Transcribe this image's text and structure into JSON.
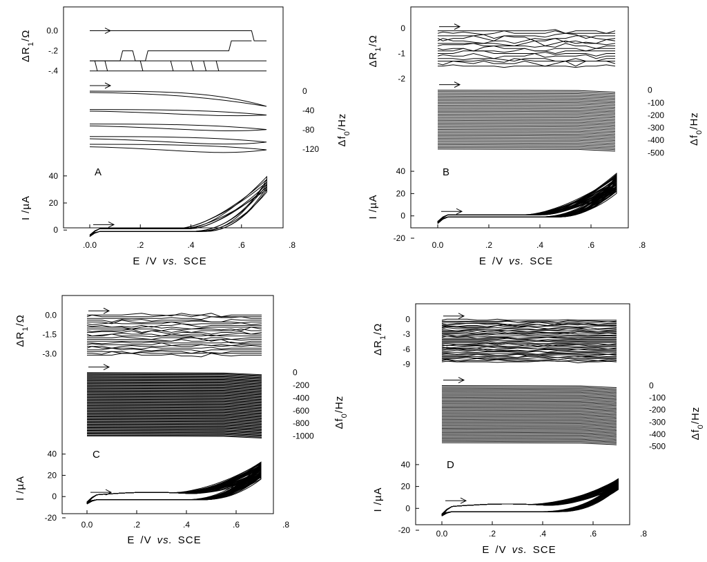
{
  "chart_data": [
    {
      "type": "line",
      "panel": "A",
      "xlabel_parts": [
        "E",
        "/V",
        "vs.",
        "SCE"
      ],
      "xticks": [
        ".0.0",
        ".2",
        ".4",
        ".6",
        ".8"
      ],
      "xlim": [
        -0.1,
        0.8
      ],
      "cv": {
        "ylabel_parts": [
          "I",
          "/",
          "µ",
          "A"
        ],
        "yticks": [
          {
            "v": 40,
            "l": "40"
          },
          {
            "v": 20,
            "l": "20"
          },
          {
            "v": 0,
            "l": "0"
          }
        ],
        "ylim": [
          -5,
          45
        ],
        "n_cycles": 6,
        "peak_current_range_uA": [
          30,
          38
        ]
      },
      "resistance": {
        "ylabel_parts": [
          "ΔR",
          "1",
          "/Ω"
        ],
        "yticks": [
          {
            "v": 0,
            "l": "0.0"
          },
          {
            "v": -0.2,
            "l": "-.2"
          },
          {
            "v": -0.4,
            "l": "-.4"
          }
        ],
        "ylim": [
          -0.45,
          0.1
        ],
        "levels": [
          0.0,
          -0.3,
          -0.4
        ]
      },
      "frequency": {
        "ylabel_parts": [
          "Δf",
          "0",
          "/Hz"
        ],
        "yticks": [
          {
            "v": 0,
            "l": "0"
          },
          {
            "v": -40,
            "l": "-40"
          },
          {
            "v": -80,
            "l": "-80"
          },
          {
            "v": -120,
            "l": "-120"
          }
        ],
        "ylim": [
          -140,
          10
        ],
        "offsets": [
          0,
          -38,
          -68,
          -94,
          -110
        ]
      }
    },
    {
      "type": "line",
      "panel": "B",
      "xlabel_parts": [
        "E",
        "/V",
        "vs.",
        "SCE"
      ],
      "xticks": [
        "0.0",
        ".2",
        ".4",
        ".6",
        ".8"
      ],
      "xlim": [
        -0.1,
        0.8
      ],
      "cv": {
        "ylabel_parts": [
          "I",
          "/",
          "µ",
          "A"
        ],
        "yticks": [
          {
            "v": 40,
            "l": "40"
          },
          {
            "v": 20,
            "l": "20"
          },
          {
            "v": 0,
            "l": "0"
          },
          {
            "v": -20,
            "l": "-20"
          }
        ],
        "ylim": [
          -20,
          45
        ],
        "n_cycles": 30,
        "peak_current_range_uA": [
          22,
          37
        ]
      },
      "resistance": {
        "ylabel_parts": [
          "ΔR",
          "1",
          "/Ω"
        ],
        "yticks": [
          {
            "v": 0,
            "l": "0"
          },
          {
            "v": -1,
            "l": "-1"
          },
          {
            "v": -2,
            "l": "-2"
          }
        ],
        "ylim": [
          -2.3,
          0.3
        ],
        "range": [
          -1.5,
          -0.1
        ],
        "n_traces": 15
      },
      "frequency": {
        "ylabel_parts": [
          "Δf",
          "0",
          "/Hz"
        ],
        "yticks": [
          {
            "v": 0,
            "l": "0"
          },
          {
            "v": -100,
            "l": "-100"
          },
          {
            "v": -200,
            "l": "-200"
          },
          {
            "v": -300,
            "l": "-300"
          },
          {
            "v": -400,
            "l": "-400"
          },
          {
            "v": -500,
            "l": "-500"
          }
        ],
        "ylim": [
          -520,
          20
        ],
        "range": [
          -470,
          0
        ],
        "n_traces": 40
      }
    },
    {
      "type": "line",
      "panel": "C",
      "xlabel_parts": [
        "E",
        "/V",
        "vs.",
        "SCE"
      ],
      "xticks": [
        "0.0",
        ".2",
        ".4",
        ".6",
        ".8"
      ],
      "xlim": [
        -0.1,
        0.8
      ],
      "cv": {
        "ylabel_parts": [
          "I",
          "/",
          "µ",
          "A"
        ],
        "yticks": [
          {
            "v": 40,
            "l": "40"
          },
          {
            "v": 20,
            "l": "20"
          },
          {
            "v": 0,
            "l": "0"
          },
          {
            "v": -20,
            "l": "-20"
          }
        ],
        "ylim": [
          -20,
          45
        ],
        "n_cycles": 40,
        "peak_current_range_uA": [
          20,
          34
        ]
      },
      "resistance": {
        "ylabel_parts": [
          "ΔR",
          "1",
          "/Ω"
        ],
        "yticks": [
          {
            "v": 0,
            "l": "0.0"
          },
          {
            "v": -1.5,
            "l": "-1.5"
          },
          {
            "v": -3,
            "l": "-3.0"
          }
        ],
        "ylim": [
          -3.4,
          0.6
        ],
        "range": [
          -3.1,
          0
        ],
        "n_traces": 24
      },
      "frequency": {
        "ylabel_parts": [
          "Δf",
          "0",
          "/Hz"
        ],
        "yticks": [
          {
            "v": 0,
            "l": "0"
          },
          {
            "v": -200,
            "l": "-200"
          },
          {
            "v": -400,
            "l": "-400"
          },
          {
            "v": -600,
            "l": "-600"
          },
          {
            "v": -800,
            "l": "-800"
          },
          {
            "v": -1000,
            "l": "-1000"
          }
        ],
        "ylim": [
          -1060,
          40
        ],
        "range": [
          -1000,
          0
        ],
        "n_traces": 70
      }
    },
    {
      "type": "line",
      "panel": "D",
      "xlabel_parts": [
        "E",
        "/V",
        "vs.",
        "SCE"
      ],
      "xticks": [
        "0.0",
        ".2",
        ".4",
        ".6",
        ".8"
      ],
      "xlim": [
        -0.1,
        0.8
      ],
      "cv": {
        "ylabel_parts": [
          "I",
          "/",
          "µ",
          "A"
        ],
        "yticks": [
          {
            "v": 40,
            "l": "40"
          },
          {
            "v": 20,
            "l": "20"
          },
          {
            "v": 0,
            "l": "0"
          },
          {
            "v": -20,
            "l": "-20"
          }
        ],
        "ylim": [
          -20,
          45
        ],
        "n_cycles": 40,
        "peak_current_range_uA": [
          20,
          29
        ]
      },
      "resistance": {
        "ylabel_parts": [
          "ΔR",
          "1",
          "/Ω"
        ],
        "yticks": [
          {
            "v": 0,
            "l": "0"
          },
          {
            "v": -3,
            "l": "-3"
          },
          {
            "v": -6,
            "l": "-6"
          },
          {
            "v": -9,
            "l": "-9"
          }
        ],
        "ylim": [
          -10,
          1
        ],
        "range": [
          -8.5,
          -0.2
        ],
        "n_traces": 40
      },
      "frequency": {
        "ylabel_parts": [
          "Δf",
          "0",
          "/Hz"
        ],
        "yticks": [
          {
            "v": 0,
            "l": "0"
          },
          {
            "v": -100,
            "l": "-100"
          },
          {
            "v": -200,
            "l": "-200"
          },
          {
            "v": -300,
            "l": "-300"
          },
          {
            "v": -400,
            "l": "-400"
          },
          {
            "v": -500,
            "l": "-500"
          }
        ],
        "ylim": [
          -520,
          20
        ],
        "range": [
          -470,
          0
        ],
        "n_traces": 45
      }
    }
  ]
}
